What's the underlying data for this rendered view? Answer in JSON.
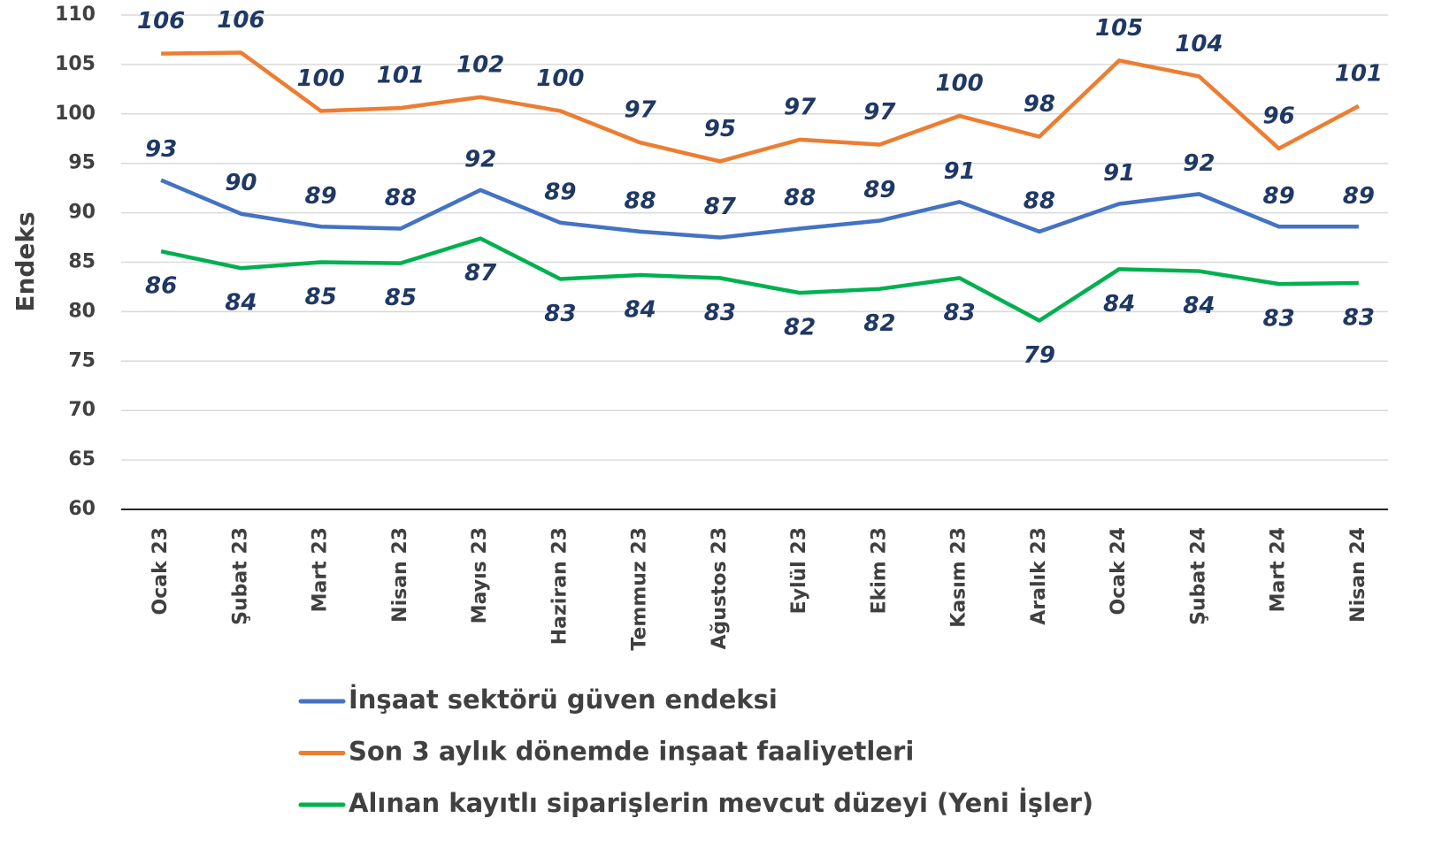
{
  "chart_data": {
    "type": "line",
    "ylabel": "Endeks",
    "categories": [
      "Ocak 23",
      "Şubat 23",
      "Mart 23",
      "Nisan 23",
      "Mayıs 23",
      "Haziran 23",
      "Temmuz 23",
      "Ağustos 23",
      "Eylül 23",
      "Ekim 23",
      "Kasım 23",
      "Aralık 23",
      "Ocak 24",
      "Şubat 24",
      "Mart 24",
      "Nisan 24"
    ],
    "ylim": [
      60,
      110
    ],
    "yticks": [
      60,
      65,
      70,
      75,
      80,
      85,
      90,
      95,
      100,
      105,
      110
    ],
    "grid": true,
    "series": [
      {
        "name": "İnşaat sektörü güven endeksi",
        "color": "#4472c4",
        "values": [
          93.3,
          89.9,
          88.6,
          88.4,
          92.3,
          89.0,
          88.1,
          87.5,
          88.4,
          89.2,
          91.1,
          88.1,
          90.9,
          91.9,
          88.6,
          88.6
        ],
        "value_labels": [
          "93",
          "90",
          "89",
          "88",
          "92",
          "89",
          "88",
          "87",
          "88",
          "89",
          "91",
          "88",
          "91",
          "92",
          "89",
          "89"
        ]
      },
      {
        "name": "Son 3 aylık dönemde inşaat faaliyetleri",
        "color": "#ed7d31",
        "values": [
          106.1,
          106.2,
          100.3,
          100.6,
          101.7,
          100.3,
          97.1,
          95.2,
          97.4,
          96.9,
          99.8,
          97.7,
          105.4,
          103.8,
          96.5,
          100.8
        ],
        "value_labels": [
          "106",
          "106",
          "100",
          "101",
          "102",
          "100",
          "97",
          "95",
          "97",
          "97",
          "100",
          "98",
          "105",
          "104",
          "96",
          "101"
        ]
      },
      {
        "name": "Alınan kayıtlı siparişlerin mevcut düzeyi (Yeni İşler)",
        "color": "#00b050",
        "values": [
          86.1,
          84.4,
          85.0,
          84.9,
          87.4,
          83.3,
          83.7,
          83.4,
          81.9,
          82.3,
          83.4,
          79.1,
          84.3,
          84.1,
          82.8,
          82.9
        ],
        "value_labels": [
          "86",
          "84",
          "85",
          "85",
          "87",
          "83",
          "84",
          "83",
          "82",
          "82",
          "83",
          "79",
          "84",
          "84",
          "83",
          "83"
        ]
      }
    ]
  }
}
